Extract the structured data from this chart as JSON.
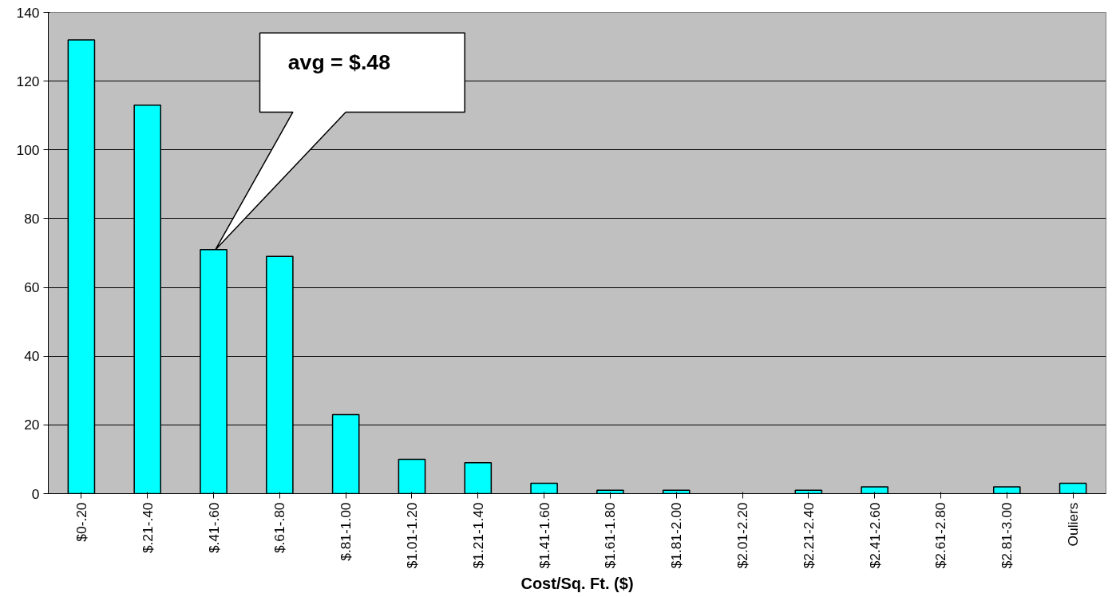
{
  "chart_data": {
    "type": "bar",
    "xlabel": "Cost/Sq. Ft. ($)",
    "categories": [
      "$0-.20",
      "$.21-.40",
      "$.41-.60",
      "$.61-.80",
      "$.81-1.00",
      "$1.01-1.20",
      "$1.21-1.40",
      "$1.41-1.60",
      "$1.61-1.80",
      "$1.81-2.00",
      "$2.01-2.20",
      "$2.21-2.40",
      "$2.41-2.60",
      "$2.61-2.80",
      "$2.81-3.00",
      "Ouliers"
    ],
    "values": [
      132,
      113,
      71,
      69,
      23,
      10,
      9,
      3,
      1,
      1,
      0,
      1,
      2,
      0,
      2,
      3
    ],
    "color": "#00ffff",
    "ylim": [
      0,
      140
    ],
    "yticks": [
      0,
      20,
      40,
      60,
      80,
      100,
      120,
      140
    ],
    "grid": "y",
    "annotations": [
      "avg = $.48"
    ]
  }
}
